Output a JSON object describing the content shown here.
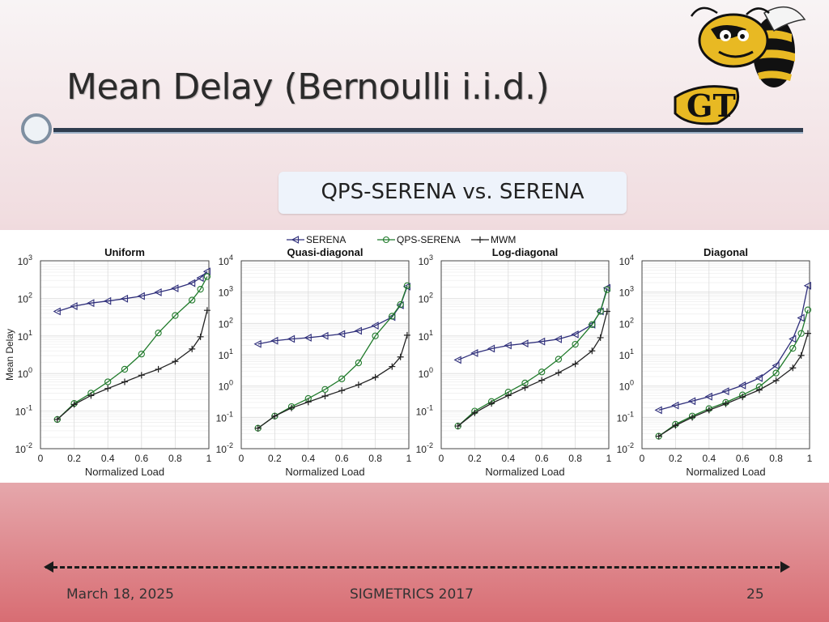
{
  "slide": {
    "title": "Mean Delay (Bernoulli i.i.d.)",
    "subtitle": "QPS-SERENA vs. SERENA",
    "footer_date": "March 18, 2025",
    "footer_venue": "SIGMETRICS 2017",
    "page_number": "25",
    "logo_text": "GT"
  },
  "legend": [
    {
      "name": "SERENA",
      "color": "#2e2e7a",
      "marker": "triangle-left"
    },
    {
      "name": "QPS-SERENA",
      "color": "#1f7a2a",
      "marker": "circle"
    },
    {
      "name": "MWM",
      "color": "#222222",
      "marker": "plus"
    }
  ],
  "chart_data": [
    {
      "type": "line",
      "title": "Uniform",
      "xlabel": "Normalized Load",
      "ylabel": "Mean Delay",
      "yscale": "log",
      "xlim": [
        0,
        1
      ],
      "ylim_exp": [
        -2,
        3
      ],
      "xticks": [
        "0",
        "0.2",
        "0.4",
        "0.6",
        "0.8",
        "1"
      ],
      "x": [
        0.1,
        0.2,
        0.3,
        0.4,
        0.5,
        0.6,
        0.7,
        0.8,
        0.9,
        0.95,
        0.99
      ],
      "series": [
        {
          "name": "SERENA",
          "values": [
            45,
            62,
            75,
            85,
            98,
            115,
            145,
            185,
            255,
            350,
            520
          ]
        },
        {
          "name": "QPS-SERENA",
          "values": [
            0.06,
            0.16,
            0.3,
            0.6,
            1.3,
            3.3,
            12,
            35,
            90,
            175,
            380
          ]
        },
        {
          "name": "MWM",
          "values": [
            0.06,
            0.15,
            0.26,
            0.4,
            0.6,
            0.9,
            1.3,
            2.1,
            4.5,
            9.5,
            48
          ]
        }
      ]
    },
    {
      "type": "line",
      "title": "Quasi-diagonal",
      "xlabel": "Normalized Load",
      "ylabel": "",
      "yscale": "log",
      "xlim": [
        0,
        1
      ],
      "ylim_exp": [
        -2,
        4
      ],
      "xticks": [
        "0",
        "0.2",
        "0.4",
        "0.6",
        "0.8",
        "1"
      ],
      "x": [
        0.1,
        0.2,
        0.3,
        0.4,
        0.5,
        0.6,
        0.7,
        0.8,
        0.9,
        0.95,
        0.99
      ],
      "series": [
        {
          "name": "SERENA",
          "values": [
            22,
            28,
            32,
            35,
            40,
            46,
            58,
            85,
            160,
            380,
            1500
          ]
        },
        {
          "name": "QPS-SERENA",
          "values": [
            0.045,
            0.11,
            0.22,
            0.4,
            0.78,
            1.7,
            5.5,
            40,
            170,
            400,
            1600
          ]
        },
        {
          "name": "MWM",
          "values": [
            0.045,
            0.11,
            0.2,
            0.31,
            0.48,
            0.72,
            1.1,
            1.9,
            4.2,
            8.5,
            42
          ]
        }
      ]
    },
    {
      "type": "line",
      "title": "Log-diagonal",
      "xlabel": "Normalized Load",
      "ylabel": "",
      "yscale": "log",
      "xlim": [
        0,
        1
      ],
      "ylim_exp": [
        -2,
        3
      ],
      "xticks": [
        "0",
        "0.2",
        "0.4",
        "0.6",
        "0.8",
        "1"
      ],
      "x": [
        0.1,
        0.2,
        0.3,
        0.4,
        0.5,
        0.6,
        0.7,
        0.8,
        0.9,
        0.95,
        0.99
      ],
      "series": [
        {
          "name": "SERENA",
          "values": [
            2.3,
            3.5,
            4.6,
            5.6,
            6.3,
            7.1,
            8.2,
            11,
            20,
            45,
            190
          ]
        },
        {
          "name": "QPS-SERENA",
          "values": [
            0.04,
            0.1,
            0.18,
            0.32,
            0.56,
            1.1,
            2.4,
            6,
            20,
            45,
            170
          ]
        },
        {
          "name": "MWM",
          "values": [
            0.04,
            0.09,
            0.16,
            0.26,
            0.42,
            0.66,
            1.05,
            1.8,
            4,
            9,
            45
          ]
        }
      ]
    },
    {
      "type": "line",
      "title": "Diagonal",
      "xlabel": "Normalized Load",
      "ylabel": "",
      "yscale": "log",
      "xlim": [
        0,
        1
      ],
      "ylim_exp": [
        -2,
        4
      ],
      "xticks": [
        "0",
        "0.2",
        "0.4",
        "0.6",
        "0.8",
        "1"
      ],
      "x": [
        0.1,
        0.2,
        0.3,
        0.4,
        0.5,
        0.6,
        0.7,
        0.8,
        0.9,
        0.95,
        0.99
      ],
      "series": [
        {
          "name": "SERENA",
          "values": [
            0.17,
            0.24,
            0.33,
            0.46,
            0.68,
            1.05,
            1.8,
            4.5,
            32,
            150,
            1600
          ]
        },
        {
          "name": "QPS-SERENA",
          "values": [
            0.025,
            0.06,
            0.11,
            0.19,
            0.3,
            0.52,
            0.95,
            2.6,
            16,
            48,
            270
          ]
        },
        {
          "name": "MWM",
          "values": [
            0.025,
            0.055,
            0.1,
            0.17,
            0.27,
            0.45,
            0.75,
            1.5,
            3.8,
            9.5,
            48
          ]
        }
      ]
    }
  ]
}
